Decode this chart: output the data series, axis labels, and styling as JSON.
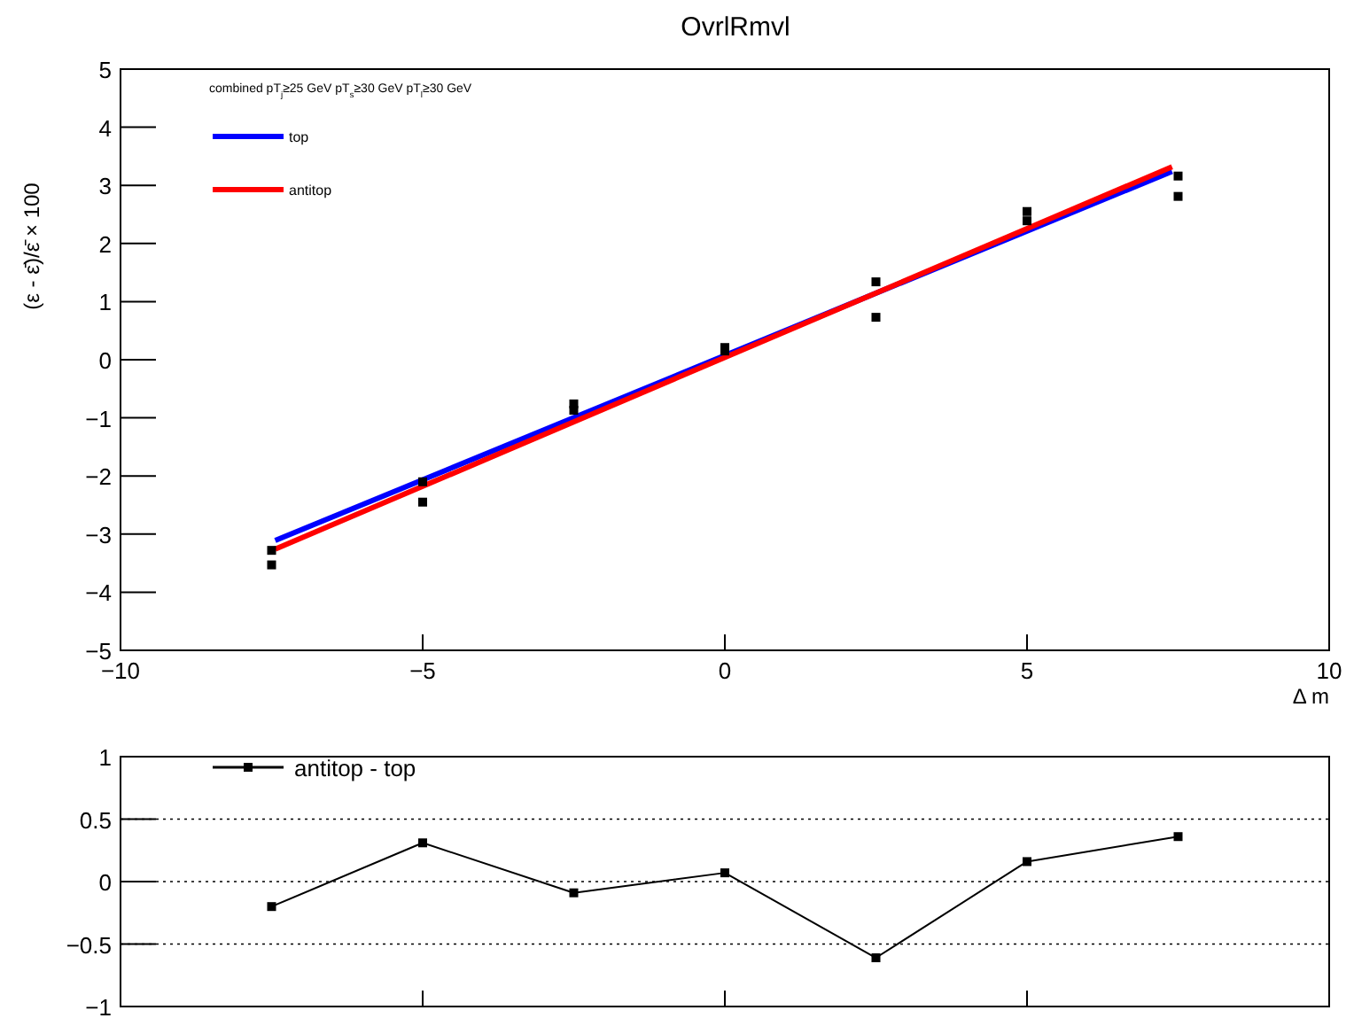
{
  "chart_data": [
    {
      "type": "line",
      "title": "OvrlRmvl",
      "xlabel": "Δ m",
      "ylabel": "(ε - ε̄)/ε̄ × 100",
      "annotations": [
        "combined pT$_{j}$≥25 GeV pT$_{s}$≥30 GeV pT$_{l}$≥30 GeV"
      ],
      "xlim": [
        -10,
        10
      ],
      "xticks": [
        -10,
        -5,
        0,
        5,
        10
      ],
      "ylim": [
        -5,
        5
      ],
      "yticks": [
        -5,
        -4,
        -3,
        -2,
        -1,
        0,
        1,
        2,
        3,
        4,
        5
      ],
      "grid": false,
      "legend": "top left",
      "series": [
        {
          "name": "top",
          "color": "#0000ff",
          "x": [
            -7.44,
            7.4
          ],
          "values": [
            -3.11,
            3.24
          ]
        },
        {
          "name": "antitop",
          "color": "#ff0000",
          "x": [
            -7.44,
            7.4
          ],
          "values": [
            -3.26,
            3.32
          ]
        },
        {
          "type": "scatter",
          "color": "#000000",
          "marker": "square",
          "x": [
            -7.5,
            -5,
            -2.5,
            0,
            2.5,
            5,
            7.5
          ],
          "values": [
            -3.28,
            -2.45,
            -0.76,
            0.15,
            1.34,
            2.39,
            2.81
          ]
        },
        {
          "type": "scatter",
          "color": "#000000",
          "marker": "square",
          "x": [
            -7.5,
            -5,
            -2.5,
            0,
            2.5,
            5,
            7.5
          ],
          "values": [
            -3.53,
            -2.1,
            -0.87,
            0.21,
            0.73,
            2.55,
            3.16
          ]
        }
      ]
    },
    {
      "type": "line",
      "xlim": [
        -10,
        10
      ],
      "xticks": [
        -10,
        -5,
        0,
        5,
        10
      ],
      "ylim": [
        -1,
        1
      ],
      "yticks": [
        -1,
        -0.5,
        0,
        0.5,
        1
      ],
      "grid": "y",
      "tick_labels": "y",
      "legend": "top left",
      "marker": "square",
      "series": [
        {
          "name": "antitop -  top",
          "color": "#000000",
          "x": [
            -7.5,
            -5,
            -2.5,
            0,
            2.5,
            5,
            7.5
          ],
          "values": [
            -0.2,
            0.31,
            -0.09,
            0.07,
            -0.61,
            0.16,
            0.36
          ]
        }
      ]
    }
  ]
}
